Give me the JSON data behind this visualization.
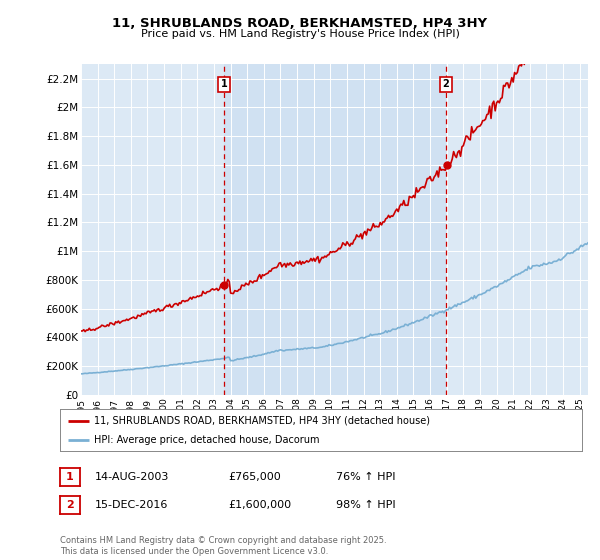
{
  "title": "11, SHRUBLANDS ROAD, BERKHAMSTED, HP4 3HY",
  "subtitle": "Price paid vs. HM Land Registry's House Price Index (HPI)",
  "ylabel_ticks": [
    "£0",
    "£200K",
    "£400K",
    "£600K",
    "£800K",
    "£1M",
    "£1.2M",
    "£1.4M",
    "£1.6M",
    "£1.8M",
    "£2M",
    "£2.2M"
  ],
  "ytick_values": [
    0,
    200000,
    400000,
    600000,
    800000,
    1000000,
    1200000,
    1400000,
    1600000,
    1800000,
    2000000,
    2200000
  ],
  "ylim": [
    0,
    2300000
  ],
  "background_color": "#dce9f5",
  "plot_bg_color": "#dce9f5",
  "red_line_color": "#cc0000",
  "blue_line_color": "#7ab0d4",
  "vline_color": "#cc0000",
  "highlight_color": "#c8ddf0",
  "sale1_x": 2003.62,
  "sale1_y": 765000,
  "sale2_x": 2016.96,
  "sale2_y": 1600000,
  "sale1_date": "14-AUG-2003",
  "sale1_price": "£765,000",
  "sale1_pct": "76% ↑ HPI",
  "sale2_date": "15-DEC-2016",
  "sale2_price": "£1,600,000",
  "sale2_pct": "98% ↑ HPI",
  "legend_label_red": "11, SHRUBLANDS ROAD, BERKHAMSTED, HP4 3HY (detached house)",
  "legend_label_blue": "HPI: Average price, detached house, Dacorum",
  "footer": "Contains HM Land Registry data © Crown copyright and database right 2025.\nThis data is licensed under the Open Government Licence v3.0.",
  "xmin": 1995.0,
  "xmax": 2025.5,
  "xtick_years": [
    1995,
    1996,
    1997,
    1998,
    1999,
    2000,
    2001,
    2002,
    2003,
    2004,
    2005,
    2006,
    2007,
    2008,
    2009,
    2010,
    2011,
    2012,
    2013,
    2014,
    2015,
    2016,
    2017,
    2018,
    2019,
    2020,
    2021,
    2022,
    2023,
    2024,
    2025
  ]
}
